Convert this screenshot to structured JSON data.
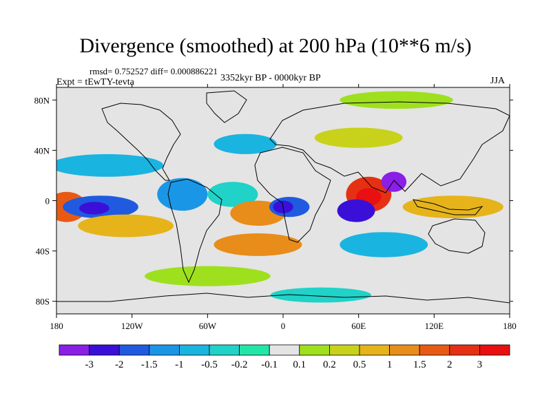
{
  "title": "Divergence (smoothed) at 200 hPa (10**6 m/s)",
  "stats": "rmsd= 0.752527 diff= 0.000886221",
  "experiment": "Expt = tEwTY-tevta",
  "period": "3352kyr BP - 0000kyr BP",
  "season": "JJA",
  "chart_data": {
    "type": "heatmap",
    "projection": "cylindrical-equidistant",
    "xlim": [
      -180,
      180
    ],
    "ylim": [
      -90,
      90
    ],
    "x_ticks": [
      {
        "value": -180,
        "label": "180"
      },
      {
        "value": -120,
        "label": "120W"
      },
      {
        "value": -60,
        "label": "60W"
      },
      {
        "value": 0,
        "label": "0"
      },
      {
        "value": 60,
        "label": "60E"
      },
      {
        "value": 120,
        "label": "120E"
      },
      {
        "value": 180,
        "label": "180"
      }
    ],
    "y_ticks": [
      {
        "value": 80,
        "label": "80N"
      },
      {
        "value": 40,
        "label": "40N"
      },
      {
        "value": 0,
        "label": "0"
      },
      {
        "value": -40,
        "label": "40S"
      },
      {
        "value": -80,
        "label": "80S"
      }
    ],
    "colorbar": {
      "labels": [
        "-3",
        "-2",
        "-1.5",
        "-1",
        "-0.5",
        "-0.2",
        "-0.1",
        "0.1",
        "0.2",
        "0.5",
        "1",
        "1.5",
        "2",
        "3"
      ],
      "colors": [
        "#8a1fe6",
        "#3a10d8",
        "#1f5ae0",
        "#1a96e6",
        "#1ab4e0",
        "#20d2c8",
        "#22e6a8",
        "#e4e4e4",
        "#9ee01e",
        "#c8d21a",
        "#e6b41a",
        "#e88c1a",
        "#e85a14",
        "#e63014",
        "#e81010"
      ]
    },
    "background_level_color": "#e4e4e4",
    "features": [
      {
        "name": "w-pacific-equatorial-positive",
        "lon": -172,
        "lat": -5,
        "rx": 16,
        "ry": 12,
        "color": "#e85a14"
      },
      {
        "name": "n-pacific-negative-band",
        "lon": -140,
        "lat": 28,
        "rx": 45,
        "ry": 9,
        "color": "#1ab4e0"
      },
      {
        "name": "central-pacific-min",
        "lon": -145,
        "lat": -5,
        "rx": 30,
        "ry": 9,
        "color": "#1f5ae0"
      },
      {
        "name": "central-pacific-core",
        "lon": -150,
        "lat": -6,
        "rx": 12,
        "ry": 5,
        "color": "#3a10d8"
      },
      {
        "name": "s-pacific-positive",
        "lon": -125,
        "lat": -20,
        "rx": 38,
        "ry": 9,
        "color": "#e6b41a"
      },
      {
        "name": "south-america-negative",
        "lon": -80,
        "lat": 5,
        "rx": 20,
        "ry": 13,
        "color": "#1a96e6"
      },
      {
        "name": "atlantic-negative",
        "lon": -40,
        "lat": 5,
        "rx": 20,
        "ry": 10,
        "color": "#20d2c8"
      },
      {
        "name": "atlantic-positive",
        "lon": -20,
        "lat": -10,
        "rx": 22,
        "ry": 10,
        "color": "#e88c1a"
      },
      {
        "name": "africa-negative",
        "lon": 5,
        "lat": -5,
        "rx": 16,
        "ry": 8,
        "color": "#1f5ae0"
      },
      {
        "name": "africa-strong-negative",
        "lon": 0,
        "lat": -5,
        "rx": 8,
        "ry": 5,
        "color": "#3a10d8"
      },
      {
        "name": "indian-ocean-strong-positive",
        "lon": 68,
        "lat": 5,
        "rx": 18,
        "ry": 14,
        "color": "#e63014"
      },
      {
        "name": "indian-ocean-peak",
        "lon": 68,
        "lat": 3,
        "rx": 10,
        "ry": 7,
        "color": "#e81010"
      },
      {
        "name": "indian-ocean-strong-negative",
        "lon": 58,
        "lat": -8,
        "rx": 15,
        "ry": 9,
        "color": "#3a10d8"
      },
      {
        "name": "bay-of-bengal-negative",
        "lon": 88,
        "lat": 15,
        "rx": 10,
        "ry": 8,
        "color": "#8a1fe6"
      },
      {
        "name": "maritime-continent-positive",
        "lon": 135,
        "lat": -5,
        "rx": 40,
        "ry": 9,
        "color": "#e6b41a"
      },
      {
        "name": "s-atlantic-positive-band",
        "lon": -20,
        "lat": -35,
        "rx": 35,
        "ry": 9,
        "color": "#e88c1a"
      },
      {
        "name": "south-indian-negative",
        "lon": 80,
        "lat": -35,
        "rx": 35,
        "ry": 10,
        "color": "#1ab4e0"
      },
      {
        "name": "southern-ocean-positive",
        "lon": -60,
        "lat": -60,
        "rx": 50,
        "ry": 8,
        "color": "#9ee01e"
      },
      {
        "name": "antarctic-negative",
        "lon": 30,
        "lat": -75,
        "rx": 40,
        "ry": 6,
        "color": "#20d2c8"
      },
      {
        "name": "north-atlantic-negative",
        "lon": -30,
        "lat": 45,
        "rx": 25,
        "ry": 8,
        "color": "#1ab4e0"
      },
      {
        "name": "arctic-positive",
        "lon": 90,
        "lat": 80,
        "rx": 45,
        "ry": 7,
        "color": "#9ee01e"
      },
      {
        "name": "eurasia-positive",
        "lon": 60,
        "lat": 50,
        "rx": 35,
        "ry": 8,
        "color": "#c8d21a"
      }
    ]
  }
}
